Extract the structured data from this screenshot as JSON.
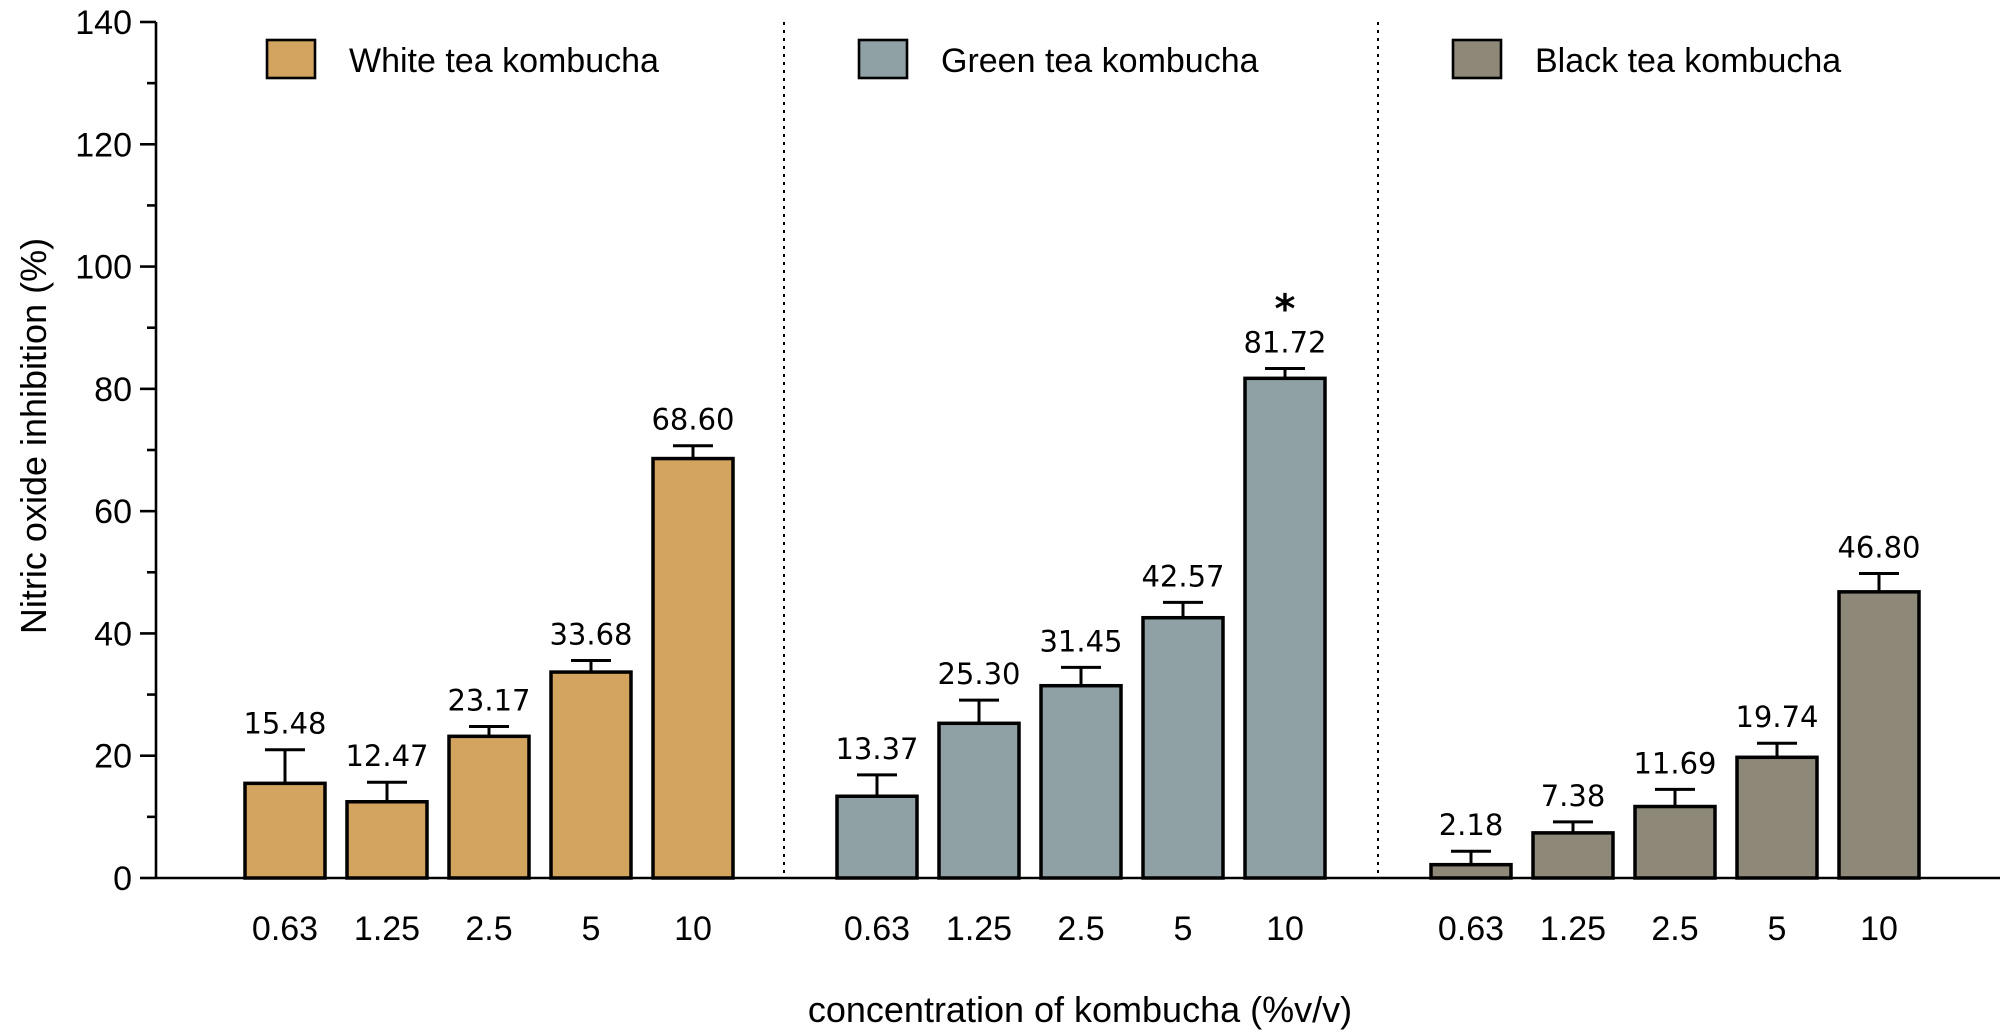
{
  "chart_data": {
    "type": "bar",
    "title": "",
    "xlabel": "concentration of kombucha (%v/v)",
    "ylabel": "Nitric oxide inhibition (%)",
    "ylim": [
      0,
      140
    ],
    "yticks": [
      0,
      20,
      40,
      60,
      80,
      100,
      120,
      140
    ],
    "categories": [
      "0.63",
      "1.25",
      "2.5",
      "5",
      "10"
    ],
    "legend_position": "top",
    "grid": false,
    "series": [
      {
        "name": "White tea kombucha",
        "color": "#D2A460",
        "values": [
          15.48,
          12.47,
          23.17,
          33.68,
          68.6
        ],
        "labels": [
          "15.48",
          "12.47",
          "23.17",
          "33.68",
          "68.60"
        ],
        "errors": [
          5.5,
          3.2,
          1.6,
          1.9,
          2.1
        ]
      },
      {
        "name": "Green tea kombucha",
        "color": "#8FA1A4",
        "values": [
          13.37,
          25.3,
          31.45,
          42.57,
          81.72
        ],
        "labels": [
          "13.37",
          "25.30",
          "31.45",
          "42.57",
          "81.72"
        ],
        "errors": [
          3.5,
          3.8,
          3.0,
          2.5,
          1.6
        ]
      },
      {
        "name": "Black tea kombucha",
        "color": "#8E8878",
        "values": [
          2.18,
          7.38,
          11.69,
          19.74,
          46.8
        ],
        "labels": [
          "2.18",
          "7.38",
          "11.69",
          "19.74",
          "46.80"
        ],
        "errors": [
          2.2,
          1.8,
          2.8,
          2.3,
          3.0
        ]
      }
    ],
    "annotations": [
      {
        "series": 1,
        "category": 4,
        "text": "*"
      }
    ]
  }
}
